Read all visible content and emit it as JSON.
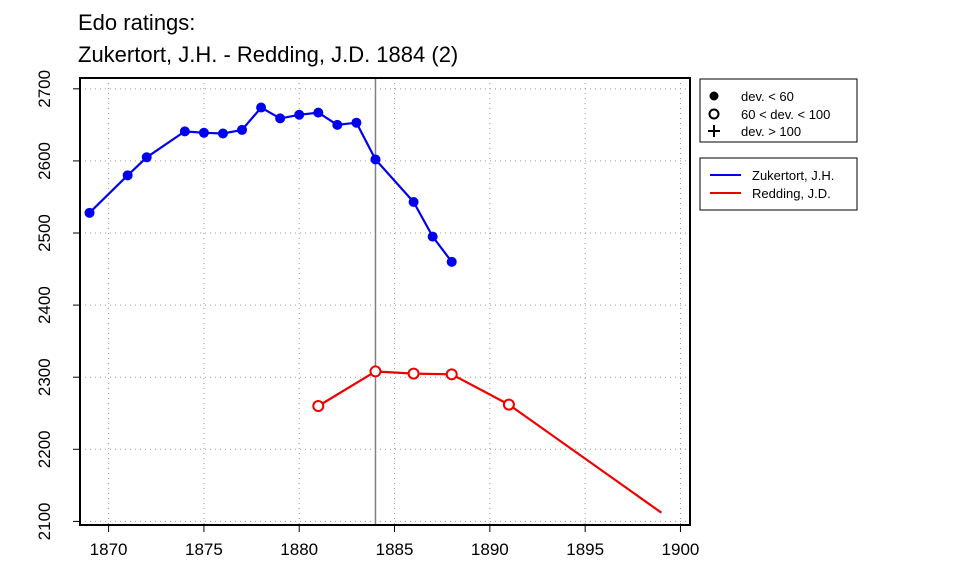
{
  "chart_data": {
    "type": "line",
    "title_lines": [
      "Edo ratings:",
      "Zukertort, J.H. - Redding, J.D. 1884 (2)"
    ],
    "xlabel": "",
    "ylabel": "",
    "xlim": [
      1868.5,
      1900.5
    ],
    "ylim": [
      2095,
      2715
    ],
    "x_ticks": [
      1870,
      1875,
      1880,
      1885,
      1890,
      1895,
      1900
    ],
    "y_ticks": [
      2100,
      2200,
      2300,
      2400,
      2500,
      2600,
      2700
    ],
    "grid": true,
    "vline_x": 1884,
    "series": [
      {
        "name": "Zukertort, J.H.",
        "color": "#0000ee",
        "x": [
          1869,
          1871,
          1872,
          1874,
          1875,
          1876,
          1877,
          1878,
          1879,
          1880,
          1881,
          1882,
          1883,
          1884,
          1886,
          1887,
          1888
        ],
        "y": [
          2528,
          2580,
          2605,
          2641,
          2639,
          2638,
          2643,
          2674,
          2659,
          2664,
          2667,
          2650,
          2653,
          2602,
          2543,
          2495,
          2460
        ],
        "markers": [
          "filled",
          "filled",
          "filled",
          "filled",
          "filled",
          "filled",
          "filled",
          "filled",
          "filled",
          "filled",
          "filled",
          "filled",
          "filled",
          "filled",
          "filled",
          "filled",
          "filled"
        ]
      },
      {
        "name": "Redding, J.D.",
        "color": "#ee0000",
        "x": [
          1881,
          1884,
          1886,
          1888,
          1891,
          1899
        ],
        "y": [
          2260,
          2308,
          2305,
          2304,
          2262,
          2112
        ],
        "markers": [
          "open",
          "open",
          "open",
          "open",
          "open",
          "none"
        ]
      }
    ],
    "legend_markers": [
      {
        "symbol": "filled-circle",
        "label": "dev. < 60"
      },
      {
        "symbol": "open-circle",
        "label": "60 < dev. < 100"
      },
      {
        "symbol": "plus",
        "label": "dev. > 100"
      }
    ],
    "legend_placement": "right, outside plot"
  }
}
